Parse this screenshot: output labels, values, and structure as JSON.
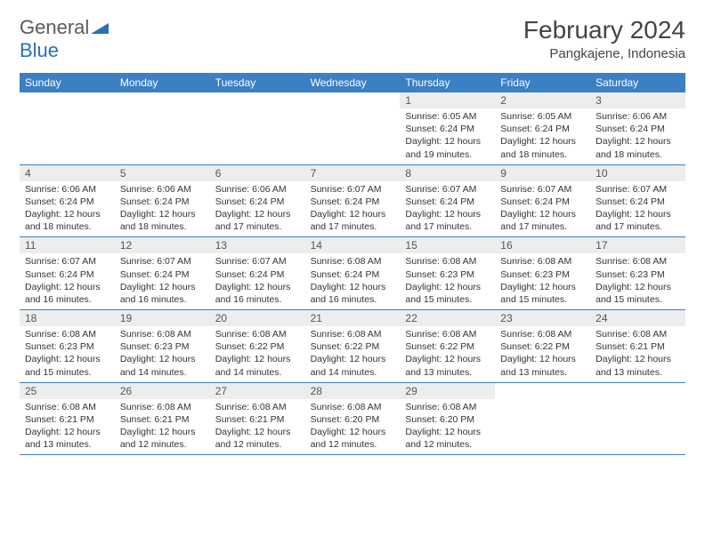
{
  "logo": {
    "text_gray": "General",
    "text_blue": "Blue"
  },
  "title": "February 2024",
  "location": "Pangkajene, Indonesia",
  "colors": {
    "header_bg": "#3b7fc4",
    "header_text": "#ffffff",
    "daynum_bg": "#eceded",
    "border": "#3b7fc4",
    "text": "#333333",
    "logo_gray": "#5a5a5a",
    "logo_blue": "#2a6fb5"
  },
  "day_names": [
    "Sunday",
    "Monday",
    "Tuesday",
    "Wednesday",
    "Thursday",
    "Friday",
    "Saturday"
  ],
  "weeks": [
    [
      {
        "empty": true
      },
      {
        "empty": true
      },
      {
        "empty": true
      },
      {
        "empty": true
      },
      {
        "n": "1",
        "sunrise": "6:05 AM",
        "sunset": "6:24 PM",
        "daylight": "12 hours and 19 minutes."
      },
      {
        "n": "2",
        "sunrise": "6:05 AM",
        "sunset": "6:24 PM",
        "daylight": "12 hours and 18 minutes."
      },
      {
        "n": "3",
        "sunrise": "6:06 AM",
        "sunset": "6:24 PM",
        "daylight": "12 hours and 18 minutes."
      }
    ],
    [
      {
        "n": "4",
        "sunrise": "6:06 AM",
        "sunset": "6:24 PM",
        "daylight": "12 hours and 18 minutes."
      },
      {
        "n": "5",
        "sunrise": "6:06 AM",
        "sunset": "6:24 PM",
        "daylight": "12 hours and 18 minutes."
      },
      {
        "n": "6",
        "sunrise": "6:06 AM",
        "sunset": "6:24 PM",
        "daylight": "12 hours and 17 minutes."
      },
      {
        "n": "7",
        "sunrise": "6:07 AM",
        "sunset": "6:24 PM",
        "daylight": "12 hours and 17 minutes."
      },
      {
        "n": "8",
        "sunrise": "6:07 AM",
        "sunset": "6:24 PM",
        "daylight": "12 hours and 17 minutes."
      },
      {
        "n": "9",
        "sunrise": "6:07 AM",
        "sunset": "6:24 PM",
        "daylight": "12 hours and 17 minutes."
      },
      {
        "n": "10",
        "sunrise": "6:07 AM",
        "sunset": "6:24 PM",
        "daylight": "12 hours and 17 minutes."
      }
    ],
    [
      {
        "n": "11",
        "sunrise": "6:07 AM",
        "sunset": "6:24 PM",
        "daylight": "12 hours and 16 minutes."
      },
      {
        "n": "12",
        "sunrise": "6:07 AM",
        "sunset": "6:24 PM",
        "daylight": "12 hours and 16 minutes."
      },
      {
        "n": "13",
        "sunrise": "6:07 AM",
        "sunset": "6:24 PM",
        "daylight": "12 hours and 16 minutes."
      },
      {
        "n": "14",
        "sunrise": "6:08 AM",
        "sunset": "6:24 PM",
        "daylight": "12 hours and 16 minutes."
      },
      {
        "n": "15",
        "sunrise": "6:08 AM",
        "sunset": "6:23 PM",
        "daylight": "12 hours and 15 minutes."
      },
      {
        "n": "16",
        "sunrise": "6:08 AM",
        "sunset": "6:23 PM",
        "daylight": "12 hours and 15 minutes."
      },
      {
        "n": "17",
        "sunrise": "6:08 AM",
        "sunset": "6:23 PM",
        "daylight": "12 hours and 15 minutes."
      }
    ],
    [
      {
        "n": "18",
        "sunrise": "6:08 AM",
        "sunset": "6:23 PM",
        "daylight": "12 hours and 15 minutes."
      },
      {
        "n": "19",
        "sunrise": "6:08 AM",
        "sunset": "6:23 PM",
        "daylight": "12 hours and 14 minutes."
      },
      {
        "n": "20",
        "sunrise": "6:08 AM",
        "sunset": "6:22 PM",
        "daylight": "12 hours and 14 minutes."
      },
      {
        "n": "21",
        "sunrise": "6:08 AM",
        "sunset": "6:22 PM",
        "daylight": "12 hours and 14 minutes."
      },
      {
        "n": "22",
        "sunrise": "6:08 AM",
        "sunset": "6:22 PM",
        "daylight": "12 hours and 13 minutes."
      },
      {
        "n": "23",
        "sunrise": "6:08 AM",
        "sunset": "6:22 PM",
        "daylight": "12 hours and 13 minutes."
      },
      {
        "n": "24",
        "sunrise": "6:08 AM",
        "sunset": "6:21 PM",
        "daylight": "12 hours and 13 minutes."
      }
    ],
    [
      {
        "n": "25",
        "sunrise": "6:08 AM",
        "sunset": "6:21 PM",
        "daylight": "12 hours and 13 minutes."
      },
      {
        "n": "26",
        "sunrise": "6:08 AM",
        "sunset": "6:21 PM",
        "daylight": "12 hours and 12 minutes."
      },
      {
        "n": "27",
        "sunrise": "6:08 AM",
        "sunset": "6:21 PM",
        "daylight": "12 hours and 12 minutes."
      },
      {
        "n": "28",
        "sunrise": "6:08 AM",
        "sunset": "6:20 PM",
        "daylight": "12 hours and 12 minutes."
      },
      {
        "n": "29",
        "sunrise": "6:08 AM",
        "sunset": "6:20 PM",
        "daylight": "12 hours and 12 minutes."
      },
      {
        "empty": true
      },
      {
        "empty": true
      }
    ]
  ],
  "labels": {
    "sunrise": "Sunrise:",
    "sunset": "Sunset:",
    "daylight": "Daylight:"
  }
}
